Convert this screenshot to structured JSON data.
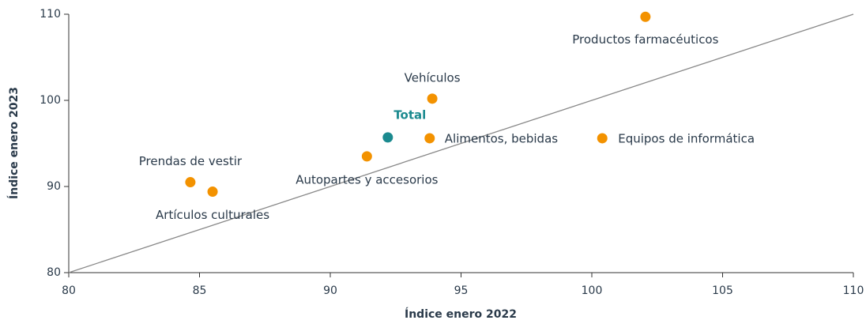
{
  "chart_data": {
    "type": "scatter",
    "xlabel": "Índice enero 2022",
    "ylabel": "Índice enero 2023",
    "xlim": [
      80,
      110
    ],
    "xticks": [
      80,
      85,
      90,
      95,
      100,
      105,
      110
    ],
    "ylim": [
      80,
      110
    ],
    "yticks": [
      80,
      90,
      100,
      110
    ],
    "diagonal": true,
    "points": [
      {
        "label": "Prendas de vestir",
        "x": 84.65,
        "y": 90.5,
        "color": "#f39200"
      },
      {
        "label": "Artículos culturales",
        "x": 85.5,
        "y": 89.4,
        "color": "#f39200"
      },
      {
        "label": "Autopartes y accesorios",
        "x": 91.4,
        "y": 93.5,
        "color": "#f39200"
      },
      {
        "label": "Total",
        "x": 92.2,
        "y": 95.7,
        "color": "#1b8a8f"
      },
      {
        "label": "Vehículos",
        "x": 93.9,
        "y": 100.2,
        "color": "#f39200"
      },
      {
        "label": "Alimentos, bebidas",
        "x": 93.8,
        "y": 95.6,
        "color": "#f39200"
      },
      {
        "label": "Equipos de informática",
        "x": 100.4,
        "y": 95.6,
        "color": "#f39200"
      },
      {
        "label": "Productos farmacéuticos",
        "x": 102.05,
        "y": 109.7,
        "color": "#f39200"
      }
    ]
  }
}
